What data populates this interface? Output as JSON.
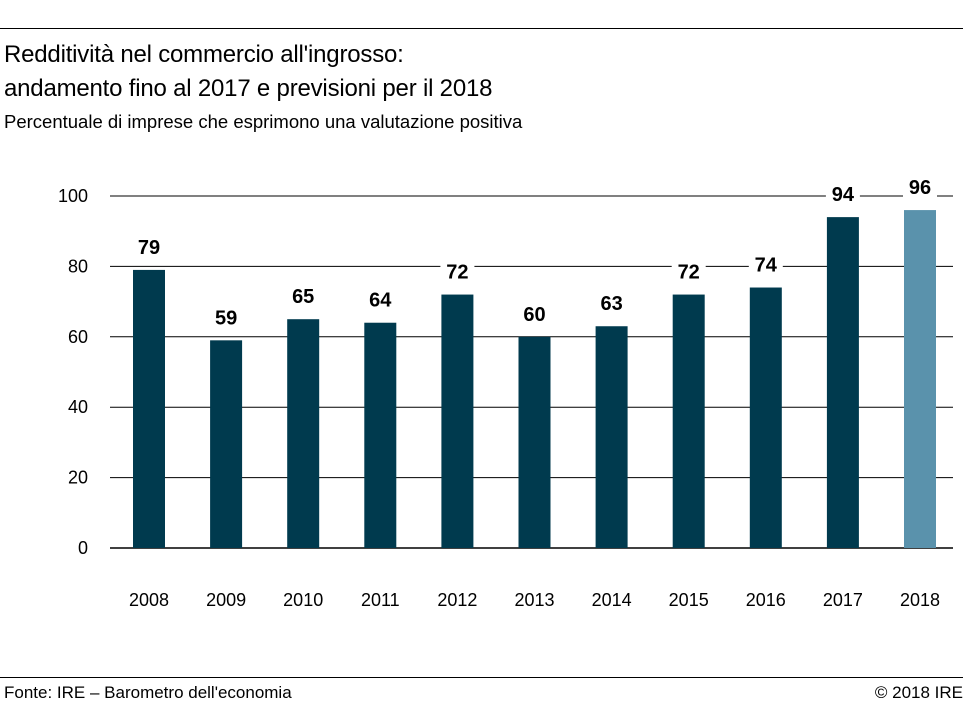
{
  "chart_data": {
    "type": "bar",
    "title_line1": "Redditività nel commercio all'ingrosso:",
    "title_line2": "andamento fino al 2017 e previsioni per il 2018",
    "subtitle": "Percentuale di imprese che esprimono una valutazione positiva",
    "categories": [
      "2008",
      "2009",
      "2010",
      "2011",
      "2012",
      "2013",
      "2014",
      "2015",
      "2016",
      "2017",
      "2018"
    ],
    "values": [
      79,
      59,
      65,
      64,
      72,
      60,
      63,
      72,
      74,
      94,
      96
    ],
    "ylim": [
      0,
      100
    ],
    "yticks": [
      0,
      20,
      40,
      60,
      80,
      100
    ],
    "grid": true,
    "bar_color": "#003a4e",
    "forecast_color": "#5a92ac",
    "forecast_index": 10
  },
  "footer": {
    "source": "Fonte: IRE – Barometro dell'economia",
    "copyright": "© 2018 IRE"
  }
}
